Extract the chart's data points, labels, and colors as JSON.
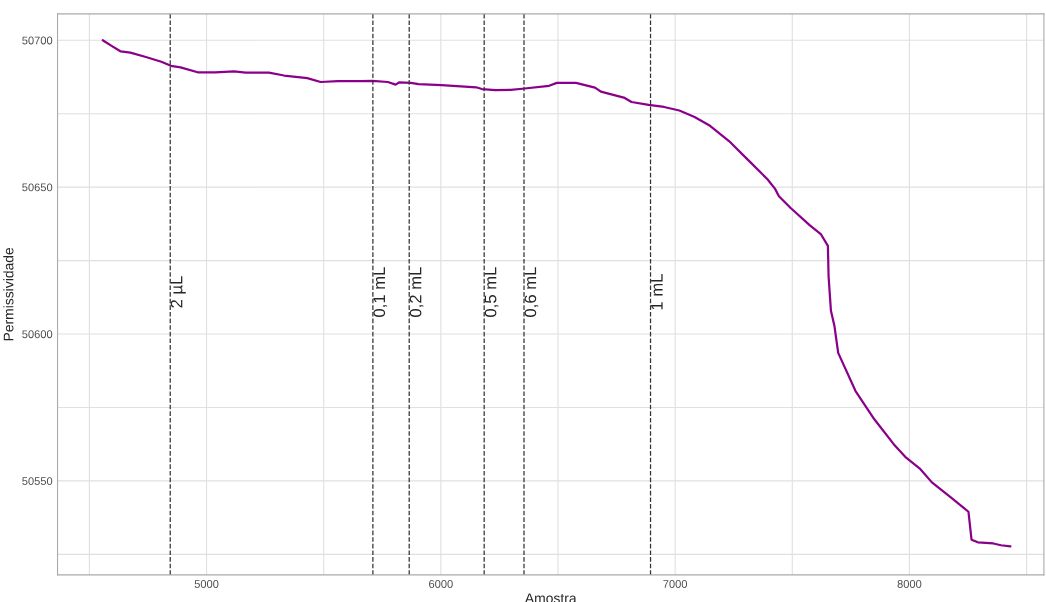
{
  "chart_data": {
    "type": "line",
    "xlabel": "Amostra",
    "ylabel": "Permissividade",
    "xlim": [
      4364,
      8574
    ],
    "ylim": [
      50518,
      50709
    ],
    "xticks": [
      5000,
      6000,
      7000,
      8000
    ],
    "yticks": [
      50550,
      50600,
      50650,
      50700
    ],
    "grid": true,
    "marker": "none",
    "line_style": "solid",
    "series": [
      {
        "color": "#8b008b",
        "x": [
          4557,
          4593,
          4634,
          4675,
          4741,
          4807,
          4848,
          4889,
          4962,
          5036,
          5118,
          5167,
          5266,
          5331,
          5430,
          5487,
          5561,
          5659,
          5708,
          5774,
          5807,
          5823,
          5872,
          5905,
          6003,
          6085,
          6151,
          6175,
          6233,
          6298,
          6348,
          6462,
          6495,
          6577,
          6658,
          6683,
          6781,
          6814,
          6887,
          6953,
          7018,
          7083,
          7149,
          7230,
          7312,
          7394,
          7426,
          7443,
          7492,
          7574,
          7623,
          7652,
          7655,
          7665,
          7680,
          7696,
          7770,
          7851,
          7933,
          7982,
          8047,
          8096,
          8178,
          8252,
          8265,
          8292,
          8358,
          8391,
          8431
        ],
        "values": [
          50700,
          50698.2,
          50696.2,
          50695.8,
          50694.3,
          50692.7,
          50691.3,
          50690.8,
          50689.1,
          50689.1,
          50689.4,
          50689,
          50689,
          50688,
          50687.1,
          50685.8,
          50686.1,
          50686.1,
          50686.2,
          50685.8,
          50684.9,
          50685.7,
          50685.5,
          50685.1,
          50684.7,
          50684.3,
          50684,
          50683.4,
          50683,
          50683.1,
          50683.5,
          50684.5,
          50685.5,
          50685.5,
          50683.9,
          50682.5,
          50680.5,
          50679,
          50678,
          50677.3,
          50676.1,
          50673.9,
          50670.9,
          50665.7,
          50659.2,
          50652.7,
          50649.5,
          50646.9,
          50643,
          50637.1,
          50633.9,
          50630,
          50619.6,
          50607.9,
          50602.7,
          50593.6,
          50580.6,
          50570.9,
          50562.5,
          50558.2,
          50554,
          50549.5,
          50544.3,
          50539.5,
          50530,
          50529.1,
          50528.7,
          50528.1,
          50527.7
        ]
      }
    ],
    "ref_lines": [
      {
        "axis": "x",
        "value": 4845,
        "label": "2 µL",
        "line_style": "dashed",
        "color": "#333333"
      },
      {
        "axis": "x",
        "value": 5710,
        "label": "0,1 mL",
        "line_style": "dashed",
        "color": "#333333"
      },
      {
        "axis": "x",
        "value": 5865,
        "label": "0,2 mL",
        "line_style": "dashed",
        "color": "#333333"
      },
      {
        "axis": "x",
        "value": 6185,
        "label": "0,5 mL",
        "line_style": "dashed",
        "color": "#333333"
      },
      {
        "axis": "x",
        "value": 6355,
        "label": "0,6 mL",
        "line_style": "dashed",
        "color": "#333333"
      },
      {
        "axis": "x",
        "value": 6895,
        "label": "1 mL",
        "line_style": "dashed",
        "color": "#333333"
      }
    ]
  }
}
